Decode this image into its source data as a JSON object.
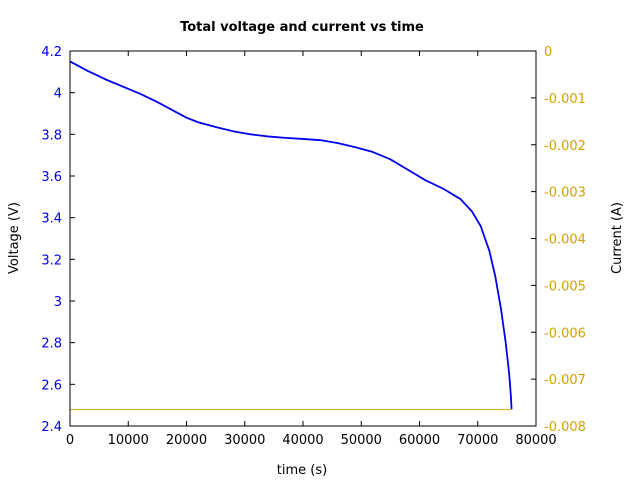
{
  "chart_data": {
    "type": "line",
    "title": "Total voltage and current vs time",
    "xlabel": "time (s)",
    "ylabel_left": "Voltage (V)",
    "ylabel_right": "Current (A)",
    "xlim": [
      0,
      80000
    ],
    "ylim_left": [
      2.4,
      4.2
    ],
    "ylim_right": [
      -0.008,
      0
    ],
    "x_ticks": [
      "0",
      "10000",
      "20000",
      "30000",
      "40000",
      "50000",
      "60000",
      "70000",
      "80000"
    ],
    "y_left_ticks": [
      "2.4",
      "2.6",
      "2.8",
      "3",
      "3.2",
      "3.4",
      "3.6",
      "3.8",
      "4",
      "4.2"
    ],
    "y_right_ticks": [
      "-0.008",
      "-0.007",
      "-0.006",
      "-0.005",
      "-0.004",
      "-0.003",
      "-0.002",
      "-0.001",
      "0"
    ],
    "grid": false,
    "series": [
      {
        "axis": "left",
        "color": "#0000ee",
        "x": [
          0,
          3000,
          6000,
          9000,
          12000,
          15000,
          18000,
          20000,
          22000,
          25000,
          28000,
          31000,
          34000,
          37000,
          40000,
          43000,
          46000,
          49000,
          52000,
          55000,
          58000,
          61000,
          64000,
          67000,
          69000,
          70500,
          72000,
          73000,
          74000,
          74800,
          75400,
          75700,
          75800
        ],
        "y": [
          4.15,
          4.105,
          4.065,
          4.03,
          3.995,
          3.955,
          3.91,
          3.88,
          3.858,
          3.835,
          3.815,
          3.8,
          3.79,
          3.783,
          3.778,
          3.772,
          3.758,
          3.738,
          3.715,
          3.68,
          3.63,
          3.58,
          3.54,
          3.49,
          3.43,
          3.36,
          3.24,
          3.12,
          2.96,
          2.8,
          2.65,
          2.54,
          2.48
        ]
      },
      {
        "axis": "right",
        "color": "#d4aa00",
        "x": [
          0,
          75800
        ],
        "y": [
          -0.00765,
          -0.00765
        ]
      }
    ]
  },
  "colors": {
    "left_axis_text": "#0000ee",
    "right_axis_text": "#d4a000",
    "voltage_line": "#0000ee",
    "current_line": "#d4aa00"
  }
}
